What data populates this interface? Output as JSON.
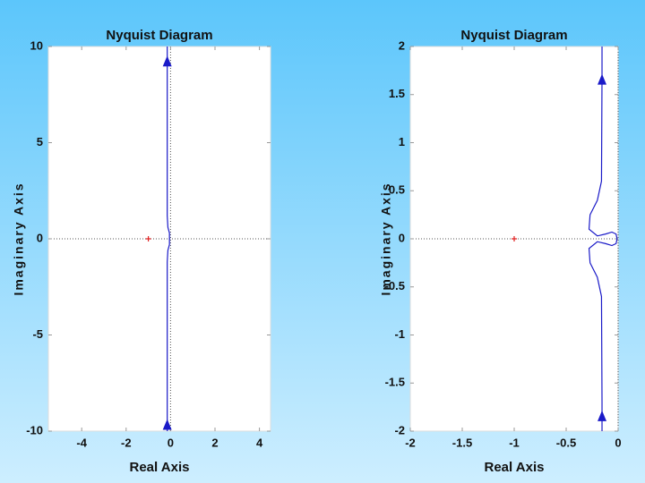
{
  "chart_data": [
    {
      "type": "line",
      "title": "Nyquist Diagram",
      "x_label": "Real Axis",
      "y_label": "Imaginary Axis",
      "xlim": [
        -5.5,
        4.5
      ],
      "ylim": [
        -10,
        10
      ],
      "xticks": [
        -4,
        -2,
        0,
        2,
        4
      ],
      "yticks": [
        -10,
        -5,
        0,
        5,
        10
      ],
      "series": [
        {
          "color": "#1a1ac8",
          "x": [
            -0.15,
            -0.15,
            -0.12,
            -0.05,
            -0.05,
            -0.12,
            -0.15,
            -0.15
          ],
          "values": [
            10,
            1.2,
            0.6,
            0.3,
            -0.3,
            -0.6,
            -1.2,
            -10
          ]
        }
      ],
      "arrows": {
        "x": [
          -0.15,
          -0.15
        ],
        "y": [
          9.2,
          -9.7
        ],
        "direction": [
          "up",
          "up"
        ]
      },
      "critical_point": {
        "x": -1,
        "y": 0,
        "color": "#e02020"
      }
    },
    {
      "type": "line",
      "title": "Nyquist Diagram",
      "x_label": "Real Axis",
      "y_label": "Imaginary Axis",
      "xlim": [
        -2,
        0
      ],
      "ylim": [
        -2,
        2
      ],
      "xticks": [
        -2,
        -1.5,
        -1,
        -0.5,
        0
      ],
      "yticks": [
        -2,
        -1.5,
        -1,
        -0.5,
        0,
        0.5,
        1,
        1.5,
        2
      ],
      "series": [
        {
          "color": "#1a1ac8",
          "x": [
            -0.155,
            -0.155,
            -0.16,
            -0.2,
            -0.27,
            -0.28,
            -0.2,
            -0.12,
            -0.06,
            -0.02,
            -0.01,
            -0.02,
            -0.06,
            -0.12,
            -0.2,
            -0.28,
            -0.27,
            -0.2,
            -0.16,
            -0.155,
            -0.155
          ],
          "values": [
            2,
            1.7,
            0.6,
            0.4,
            0.25,
            0.1,
            0.03,
            0.05,
            0.07,
            0.05,
            0,
            -0.05,
            -0.07,
            -0.05,
            -0.03,
            -0.1,
            -0.25,
            -0.4,
            -0.6,
            -1.7,
            -2
          ]
        }
      ],
      "arrows": {
        "x": [
          -0.155,
          -0.155
        ],
        "y": [
          1.65,
          -1.85
        ],
        "direction": [
          "up",
          "up"
        ]
      },
      "critical_point": {
        "x": -1,
        "y": 0,
        "color": "#e02020"
      }
    }
  ]
}
